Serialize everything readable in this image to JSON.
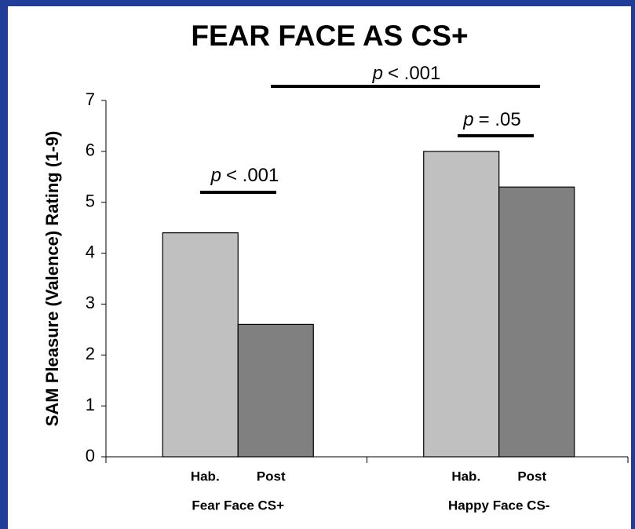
{
  "chart_data": {
    "type": "bar",
    "title": "FEAR FACE AS CS+",
    "y_label": "SAM Pleasure (Valence) Rating (1-9)",
    "categories": [
      "Fear Face CS+",
      "Happy Face CS-"
    ],
    "series": [
      {
        "name": "Hab.",
        "color": "#c0c0c0",
        "values": [
          4.4,
          6.0
        ]
      },
      {
        "name": "Post",
        "color": "#808080",
        "values": [
          2.6,
          5.3
        ]
      }
    ],
    "ylim": [
      0,
      7
    ],
    "yticks": [
      0,
      1,
      2,
      3,
      4,
      5,
      6,
      7
    ],
    "annotations": [
      {
        "stat": "p",
        "text": "< .001"
      },
      {
        "stat": "p",
        "text": "= .05"
      },
      {
        "stat": "p",
        "text": "< .001"
      }
    ]
  }
}
